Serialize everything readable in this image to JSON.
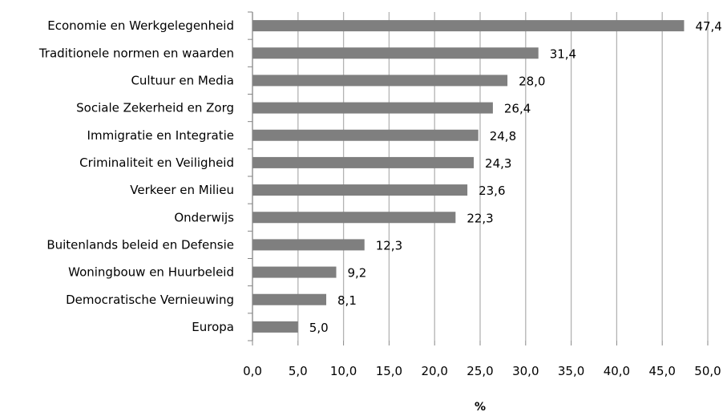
{
  "chart_data": {
    "type": "bar",
    "orientation": "horizontal",
    "categories": [
      "Economie en Werkgelegenheid",
      "Traditionele normen en waarden",
      "Cultuur en Media",
      "Sociale Zekerheid en Zorg",
      "Immigratie en Integratie",
      "Criminaliteit en Veiligheid",
      "Verkeer en Milieu",
      "Onderwijs",
      "Buitenlands beleid en Defensie",
      "Woningbouw en Huurbeleid",
      "Democratische Vernieuwing",
      "Europa"
    ],
    "values": [
      47.4,
      31.4,
      28.0,
      26.4,
      24.8,
      24.3,
      23.6,
      22.3,
      12.3,
      9.2,
      8.1,
      5.0
    ],
    "value_labels": [
      "47,4",
      "31,4",
      "28,0",
      "26,4",
      "24,8",
      "24,3",
      "23,6",
      "22,3",
      "12,3",
      "9,2",
      "8,1",
      "5,0"
    ],
    "title": "",
    "xlabel": "%",
    "ylabel": "",
    "xlim": [
      0,
      50
    ],
    "ticks": [
      0,
      5,
      10,
      15,
      20,
      25,
      30,
      35,
      40,
      45,
      50
    ],
    "tick_labels": [
      "0,0",
      "5,0",
      "10,0",
      "15,0",
      "20,0",
      "25,0",
      "30,0",
      "35,0",
      "40,0",
      "45,0",
      "50,0"
    ],
    "grid": true,
    "legend": "none",
    "colors": {
      "bar": "#7f7f7f",
      "grid": "#b3b3b3",
      "axis": "#868686",
      "text": "#000000"
    }
  }
}
